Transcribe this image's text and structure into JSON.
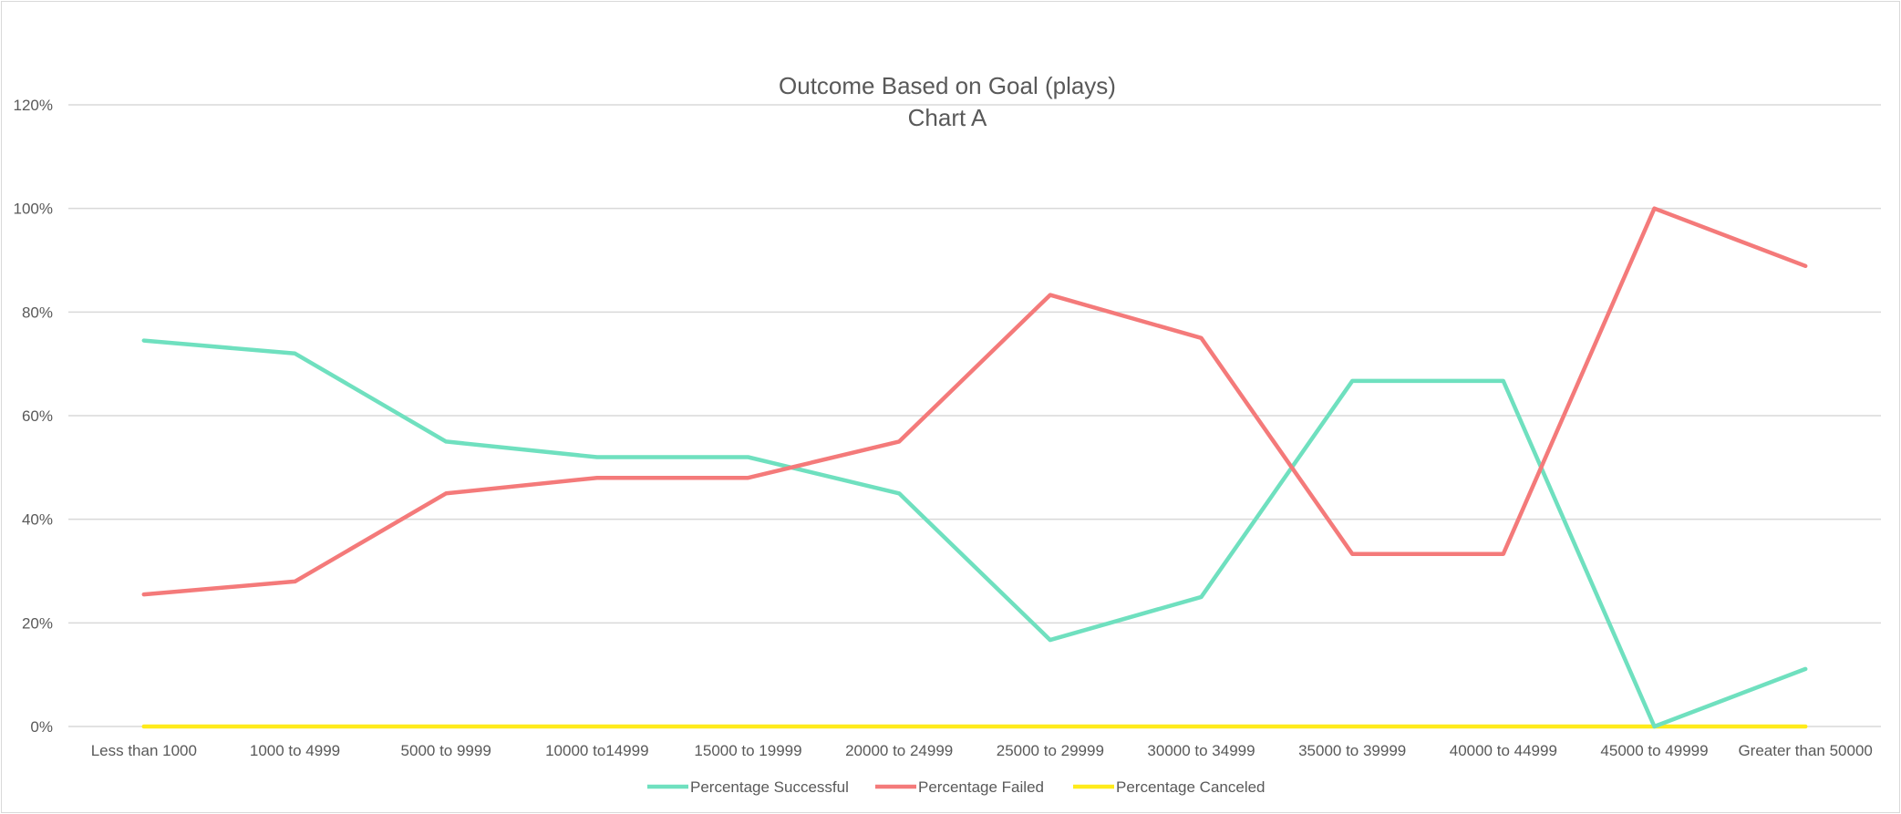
{
  "chart_data": {
    "type": "line",
    "title": "Outcome Based on Goal (plays)",
    "subtitle": "Chart A",
    "xlabel": "",
    "ylabel": "",
    "categories": [
      "Less than 1000",
      "1000 to 4999",
      "5000 to 9999",
      "10000 to14999",
      "15000 to 19999",
      "20000 to 24999",
      "25000 to 29999",
      "30000 to 34999",
      "35000 to 39999",
      "40000 to 44999",
      "45000 to 49999",
      "Greater than 50000"
    ],
    "ylim": [
      0,
      1.2
    ],
    "yticks": [
      0,
      0.2,
      0.4,
      0.6,
      0.8,
      1.0,
      1.2
    ],
    "ytick_labels": [
      "0%",
      "20%",
      "40%",
      "60%",
      "80%",
      "100%",
      "120%"
    ],
    "grid": true,
    "legend_position": "bottom",
    "series": [
      {
        "name": "Percentage Successful",
        "color": "#6fe0bf",
        "values": [
          0.745,
          0.72,
          0.55,
          0.52,
          0.52,
          0.45,
          0.167,
          0.25,
          0.667,
          0.667,
          0.0,
          0.111
        ]
      },
      {
        "name": "Percentage Failed",
        "color": "#f47a7a",
        "values": [
          0.255,
          0.28,
          0.45,
          0.48,
          0.48,
          0.55,
          0.833,
          0.75,
          0.333,
          0.333,
          1.0,
          0.889
        ]
      },
      {
        "name": "Percentage Canceled",
        "color": "#ffeb1a",
        "values": [
          0,
          0,
          0,
          0,
          0,
          0,
          0,
          0,
          0,
          0,
          0,
          0
        ]
      }
    ]
  }
}
